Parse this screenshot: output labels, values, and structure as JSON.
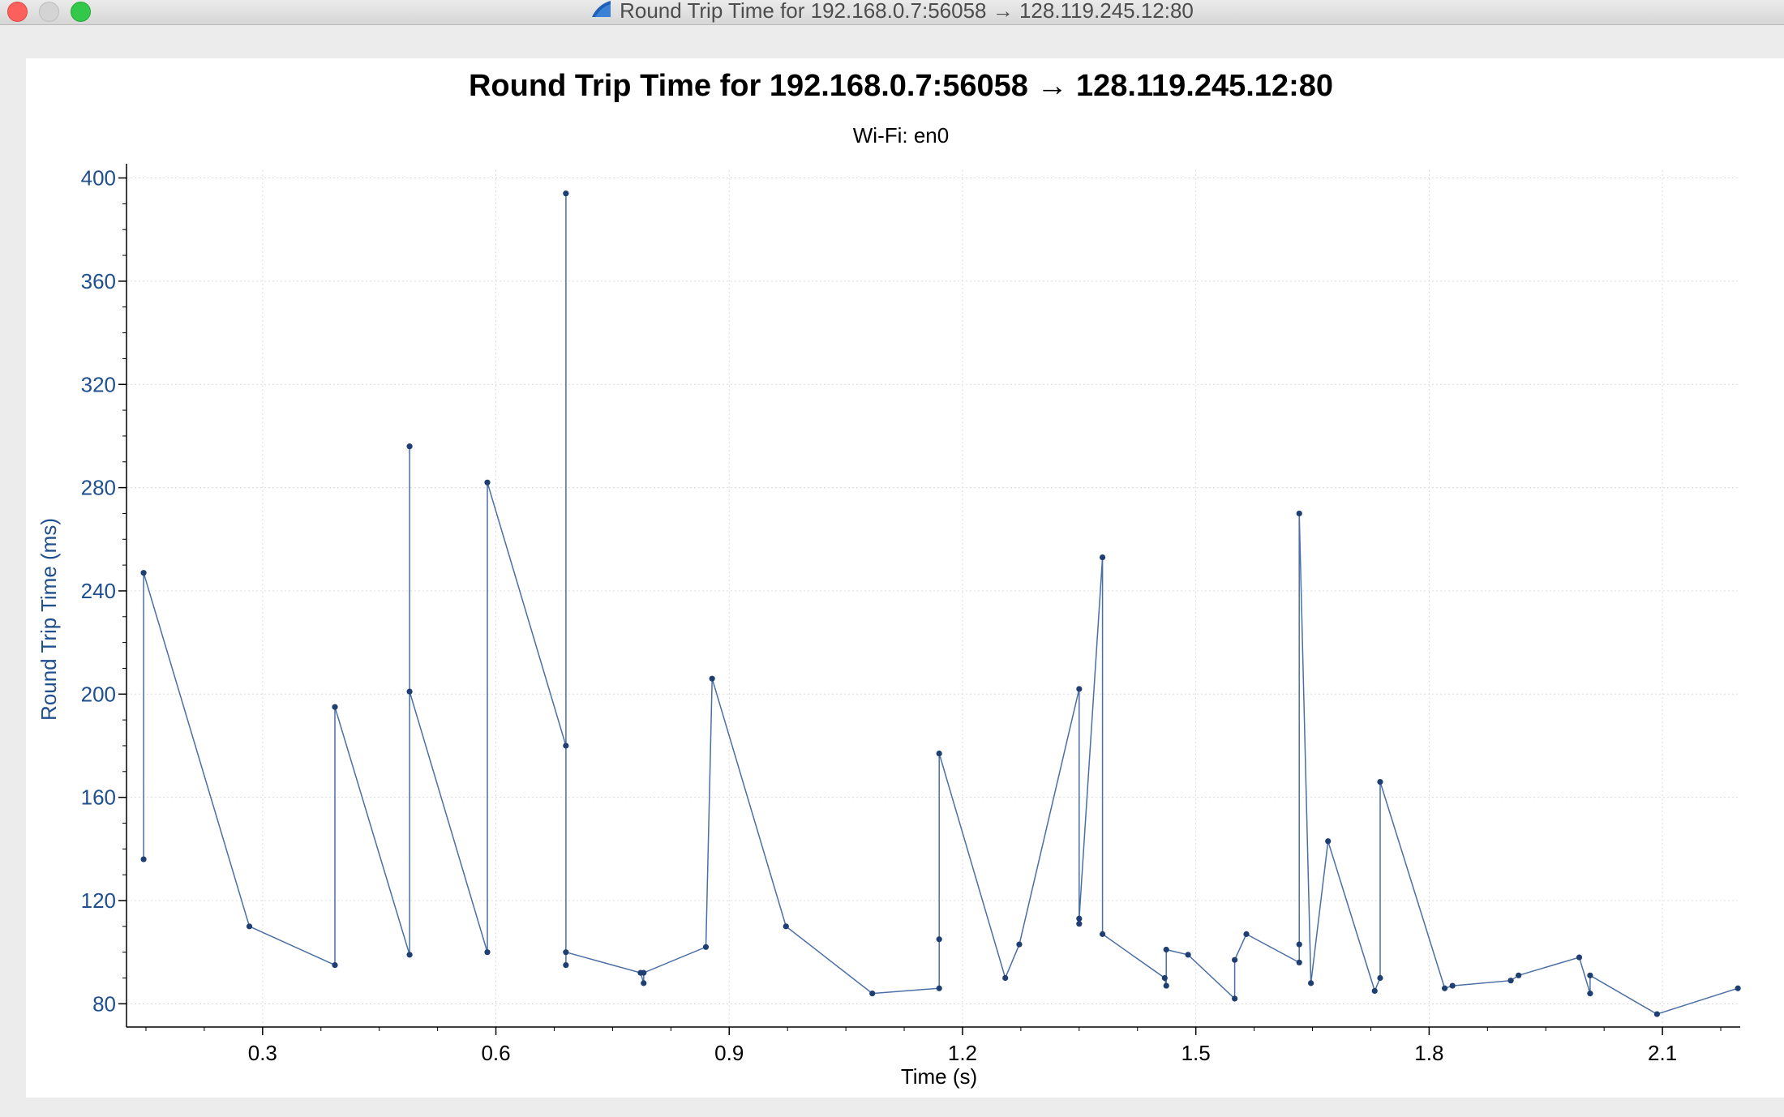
{
  "window": {
    "title": "Round Trip Time for 192.168.0.7:56058 → 128.119.245.12:80"
  },
  "colors": {
    "series": "#4a6fa5",
    "marker": "#1f3f73",
    "axis_text": "#1f4f8f",
    "grid": "#dcdcdc"
  },
  "chart_data": {
    "type": "scatter",
    "title": "Round Trip Time for 192.168.0.7:56058 → 128.119.245.12:80",
    "subtitle": "Wi-Fi: en0",
    "xlabel": "Time (s)",
    "ylabel": "Round Trip Time (ms)",
    "xlim": [
      0.125,
      2.2
    ],
    "ylim": [
      71,
      403
    ],
    "xticks": [
      0.3,
      0.6,
      0.9,
      1.2,
      1.5,
      1.8,
      2.1
    ],
    "xtick_labels": [
      "0.3",
      "0.6",
      "0.9",
      "1.2",
      "1.5",
      "1.8",
      "2.1"
    ],
    "yticks": [
      80,
      120,
      160,
      200,
      240,
      280,
      320,
      360,
      400
    ],
    "ytick_labels": [
      "80",
      "120",
      "160",
      "200",
      "240",
      "280",
      "320",
      "360",
      "400"
    ],
    "grid": true,
    "connected": true,
    "series": [
      {
        "points": [
          [
            0.147,
            136
          ],
          [
            0.147,
            247
          ],
          [
            0.283,
            110
          ],
          [
            0.393,
            95
          ],
          [
            0.393,
            195
          ],
          [
            0.489,
            99
          ],
          [
            0.489,
            296
          ],
          [
            0.489,
            201
          ],
          [
            0.589,
            100
          ],
          [
            0.589,
            282
          ],
          [
            0.69,
            180
          ],
          [
            0.69,
            394
          ],
          [
            0.69,
            95
          ],
          [
            0.69,
            100
          ],
          [
            0.786,
            92
          ],
          [
            0.79,
            88
          ],
          [
            0.79,
            92
          ],
          [
            0.87,
            102
          ],
          [
            0.878,
            206
          ],
          [
            0.973,
            110
          ],
          [
            1.084,
            84
          ],
          [
            1.17,
            86
          ],
          [
            1.17,
            105
          ],
          [
            1.17,
            177
          ],
          [
            1.255,
            90
          ],
          [
            1.273,
            103
          ],
          [
            1.35,
            202
          ],
          [
            1.35,
            111
          ],
          [
            1.35,
            113
          ],
          [
            1.38,
            253
          ],
          [
            1.38,
            107
          ],
          [
            1.46,
            90
          ],
          [
            1.462,
            87
          ],
          [
            1.462,
            101
          ],
          [
            1.49,
            99
          ],
          [
            1.55,
            82
          ],
          [
            1.55,
            97
          ],
          [
            1.565,
            107
          ],
          [
            1.633,
            96
          ],
          [
            1.633,
            103
          ],
          [
            1.633,
            270
          ],
          [
            1.648,
            88
          ],
          [
            1.67,
            143
          ],
          [
            1.73,
            85
          ],
          [
            1.737,
            90
          ],
          [
            1.737,
            166
          ],
          [
            1.82,
            86
          ],
          [
            1.83,
            87
          ],
          [
            1.905,
            89
          ],
          [
            1.915,
            91
          ],
          [
            1.993,
            98
          ],
          [
            2.007,
            84
          ],
          [
            2.007,
            91
          ],
          [
            2.093,
            76
          ],
          [
            2.197,
            86
          ]
        ]
      }
    ]
  }
}
